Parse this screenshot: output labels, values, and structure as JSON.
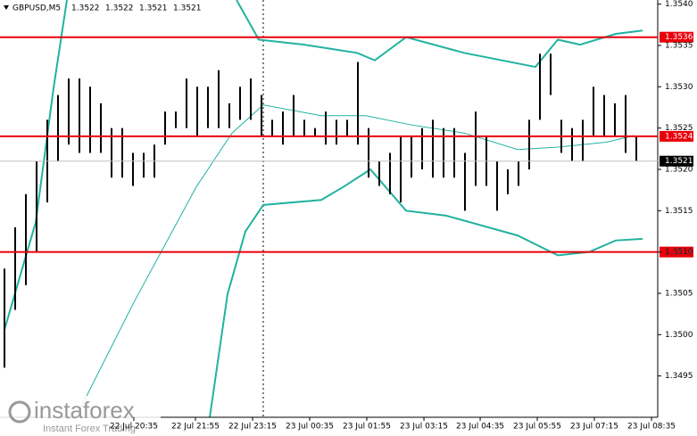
{
  "chart_data": {
    "type": "ohlc",
    "title": "GBPUSD,M5",
    "quote": [
      1.3522,
      1.3522,
      1.3521,
      1.3521
    ],
    "bar_color": "#000000",
    "high": [
      1.3508,
      1.3513,
      1.3517,
      1.3521,
      1.3526,
      1.3529,
      1.3531,
      1.3531,
      1.353,
      1.3528,
      1.3525,
      1.3525,
      1.3522,
      1.3522,
      1.3523,
      1.3527,
      1.3527,
      1.3531,
      1.353,
      1.353,
      1.3532,
      1.3528,
      1.353,
      1.3531,
      1.3529,
      1.3526,
      1.3527,
      1.3529,
      1.3526,
      1.3525,
      1.3527,
      1.3526,
      1.3526,
      1.3533,
      1.3525,
      1.3521,
      1.3522,
      1.3524,
      1.3524,
      1.3525,
      1.3526,
      1.3525,
      1.3525,
      1.3522,
      1.3527,
      1.3524,
      1.3521,
      1.352,
      1.3521,
      1.3526,
      1.3534,
      1.3534,
      1.3526,
      1.3525,
      1.3526,
      1.353,
      1.3529,
      1.3528,
      1.3529,
      1.3524
    ],
    "low": [
      1.3496,
      1.3503,
      1.3506,
      1.351,
      1.3516,
      1.3521,
      1.3523,
      1.3522,
      1.3522,
      1.3522,
      1.3519,
      1.3519,
      1.3518,
      1.3519,
      1.3519,
      1.3523,
      1.3525,
      1.3525,
      1.3524,
      1.3525,
      1.3525,
      1.3525,
      1.3526,
      1.3526,
      1.3524,
      1.3524,
      1.3523,
      1.3524,
      1.3524,
      1.3524,
      1.3523,
      1.3523,
      1.3524,
      1.3523,
      1.3519,
      1.3518,
      1.3517,
      1.3516,
      1.3519,
      1.352,
      1.3519,
      1.3519,
      1.3519,
      1.3515,
      1.3518,
      1.3518,
      1.3515,
      1.3517,
      1.3518,
      1.352,
      1.3526,
      1.3529,
      1.3522,
      1.3521,
      1.3521,
      1.3524,
      1.3524,
      1.3524,
      1.3522,
      1.3521
    ],
    "xlim": [
      -0.417,
      61
    ],
    "ylim": [
      1.349,
      1.35405
    ],
    "yticks": [
      {
        "value": 1.354,
        "label": "1.3540"
      },
      1.3535,
      {
        "value": 1.353,
        "label": "1.3530"
      },
      1.3525,
      {
        "value": 1.352,
        "label": "1.3520"
      },
      1.3515,
      {
        "value": 1.351,
        "label": "1.3510"
      },
      1.3505,
      {
        "value": 1.35,
        "label": "1.3500"
      },
      1.3495
    ],
    "xticks": [
      {
        "value": 12.08,
        "label": "22 Jul 20:35"
      },
      {
        "value": 17.83,
        "label": "22 Jul 21:55"
      },
      {
        "value": 23.17,
        "label": "22 Jul 23:15"
      },
      {
        "value": 28.5,
        "label": "23 Jul 00:35"
      },
      {
        "value": 33.83,
        "label": "23 Jul 01:55"
      },
      {
        "value": 39.17,
        "label": "23 Jul 03:15"
      },
      {
        "value": 44.42,
        "label": "23 Jul 04:35"
      },
      {
        "value": 49.75,
        "label": "23 Jul 05:55"
      },
      {
        "value": 55.08,
        "label": "23 Jul 07:15"
      },
      {
        "value": 60.42,
        "label": "23 Jul 08:35"
      }
    ],
    "lines": [
      {
        "color": "#20b2a0",
        "width": 2,
        "x": [
          0,
          2.92,
          4.58,
          5.83,
          null,
          21.67,
          23.75,
          27.92,
          32.92,
          34.58,
          37.5,
          42.92,
          49.58,
          51.67,
          53.75,
          57.08,
          59.58
        ],
        "values": [
          1.35006,
          1.35136,
          1.35298,
          1.35405,
          null,
          1.35405,
          1.35357,
          1.35351,
          1.35341,
          1.35332,
          1.3536,
          1.35341,
          1.35324,
          1.35357,
          1.35351,
          1.35364,
          1.35368
        ]
      },
      {
        "color": "#20b2a0",
        "width": 1,
        "x": [
          6.67,
          12.08,
          17.92,
          21.25,
          24.17,
          29.58,
          33.75,
          37.92,
          42.92,
          47.92,
          51.67,
          56.25,
          58.75
        ],
        "values": [
          1.349,
          1.35039,
          1.35179,
          1.35244,
          1.35278,
          1.35265,
          1.35265,
          1.35254,
          1.35244,
          1.35224,
          1.35227,
          1.35233,
          1.35241
        ]
      },
      {
        "color": "#20b2a0",
        "width": 2,
        "x": [
          19.17,
          20.83,
          22.5,
          24.17,
          29.58,
          31.67,
          34.17,
          37.5,
          41.25,
          47.92,
          51.67,
          54.58,
          57.08,
          59.58
        ],
        "values": [
          1.349,
          1.35049,
          1.35125,
          1.35157,
          1.35163,
          1.35179,
          1.352,
          1.3515,
          1.35144,
          1.3512,
          1.35096,
          1.351,
          1.35114,
          1.35116
        ]
      }
    ],
    "levels": [
      {
        "value": 1.3536,
        "color": "#e8000b"
      },
      {
        "value": 1.3524,
        "color": "#e8000b"
      },
      {
        "value": 1.351,
        "label": "1.3510",
        "color": "#e8000b"
      }
    ],
    "last": 1.3521,
    "watermark": {
      "brand": "instaforex",
      "tagline": "Instant Forex Trading"
    }
  }
}
